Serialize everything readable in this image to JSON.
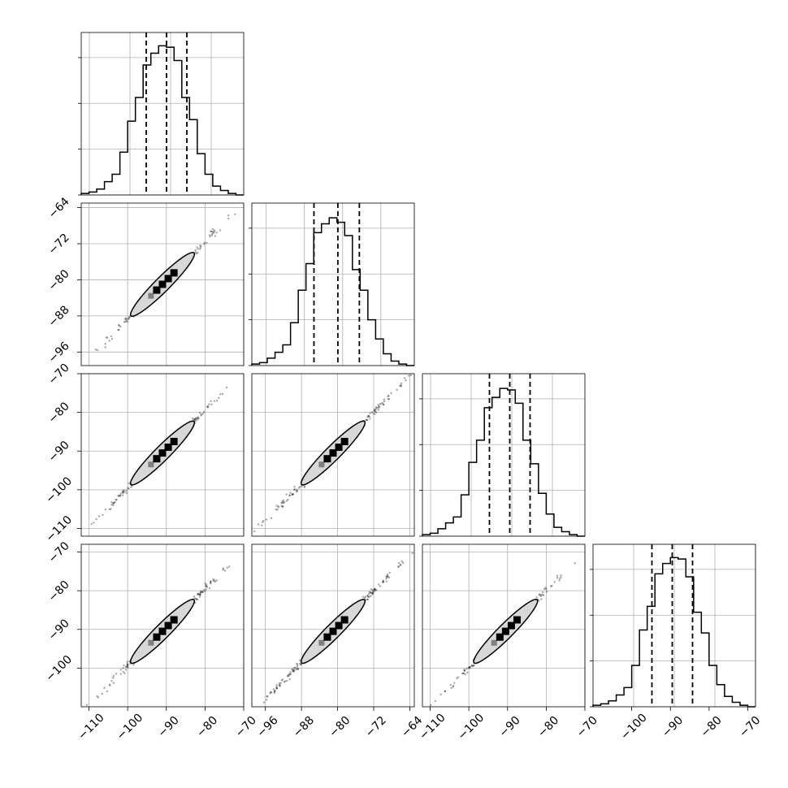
{
  "chart_data": {
    "type": "corner",
    "grid": true,
    "colors": {
      "line": "#000000",
      "grid": "#b0b0b0",
      "contour_fill": "#d8d8d8",
      "points": "#000000"
    },
    "quantile_lines": [
      {
        "panel": 1,
        "values": [
          -96.0,
          -91.0,
          -86.0
        ]
      },
      {
        "panel": 2,
        "values": [
          -86.0,
          -81.0,
          -76.5
        ]
      },
      {
        "panel": 3,
        "values": [
          -95.5,
          -90.5,
          -85.5
        ]
      },
      {
        "panel": 4,
        "values": [
          -95.5,
          -90.5,
          -85.5
        ]
      }
    ],
    "axis_ticks": {
      "p1": {
        "values": [
          -110,
          -100,
          -90,
          -80,
          -70
        ],
        "labels": [
          "−110",
          "−100",
          "−90",
          "−80",
          "−70"
        ]
      },
      "p2": {
        "values": [
          -96,
          -88,
          -80,
          -72,
          -64
        ],
        "labels": [
          "−96",
          "−88",
          "−80",
          "−72",
          "−64"
        ]
      },
      "p3": {
        "values": [
          -110,
          -100,
          -90,
          -80,
          -70
        ],
        "labels": [
          "−110",
          "−100",
          "−90",
          "−80",
          "−70"
        ]
      },
      "p4": {
        "values": [
          -100,
          -90,
          -80,
          -70
        ],
        "labels": [
          "−100",
          "−90",
          "−80",
          "−70"
        ]
      }
    },
    "left_axis_ticks": {
      "row2": {
        "values": [
          -96,
          -88,
          -80,
          -72,
          -64
        ],
        "labels": [
          "−96",
          "−88",
          "−80",
          "−72",
          "−64"
        ]
      },
      "row3": {
        "values": [
          -110,
          -100,
          -90,
          -80,
          -70
        ],
        "labels": [
          "−110",
          "−100",
          "−90",
          "−80",
          "−70"
        ]
      },
      "row4": {
        "values": [
          -100,
          -90,
          -80,
          -70
        ],
        "labels": [
          "−100",
          "−90",
          "−80",
          "−70"
        ]
      }
    },
    "histograms": [
      {
        "panel": 1,
        "range": [
          -112,
          -72
        ],
        "counts": [
          1,
          2,
          4,
          9,
          14,
          29,
          50,
          66,
          88,
          96,
          101,
          100,
          91,
          66,
          51,
          28,
          14,
          6,
          3,
          1,
          0
        ]
      },
      {
        "panel": 2,
        "range": [
          -99,
          -65
        ],
        "counts": [
          1,
          2,
          5,
          9,
          14,
          29,
          51,
          69,
          90,
          96,
          100,
          97,
          88,
          65,
          51,
          31,
          18,
          8,
          3,
          1,
          0
        ]
      },
      {
        "panel": 3,
        "range": [
          -112,
          -72
        ],
        "counts": [
          1,
          2,
          5,
          9,
          13,
          28,
          50,
          65,
          87,
          94,
          100,
          99,
          90,
          65,
          49,
          29,
          15,
          6,
          3,
          1,
          0
        ]
      },
      {
        "panel": 4,
        "range": [
          -110,
          -70
        ],
        "counts": [
          1,
          2,
          4,
          8,
          13,
          28,
          52,
          68,
          90,
          97,
          101,
          100,
          88,
          64,
          50,
          28,
          15,
          7,
          3,
          1,
          0
        ]
      }
    ],
    "hist_y_ticks": [
      {
        "panel": 1,
        "values": [
          0,
          31,
          62,
          93
        ]
      },
      {
        "panel": 2,
        "values": [
          0,
          31,
          62,
          93
        ]
      },
      {
        "panel": 3,
        "values": [
          0,
          31,
          62,
          93
        ]
      },
      {
        "panel": 4,
        "values": [
          0,
          31,
          62,
          93
        ]
      }
    ],
    "scatter_panels": [
      {
        "row": 2,
        "col": 1,
        "xparam": 1,
        "yparam": 2,
        "contour_center": [
          -91,
          -81
        ]
      },
      {
        "row": 3,
        "col": 1,
        "xparam": 1,
        "yparam": 3,
        "contour_center": [
          -91,
          -90.5
        ]
      },
      {
        "row": 3,
        "col": 2,
        "xparam": 2,
        "yparam": 3,
        "contour_center": [
          -81,
          -90.5
        ]
      },
      {
        "row": 4,
        "col": 1,
        "xparam": 1,
        "yparam": 4,
        "contour_center": [
          -91,
          -90.5
        ]
      },
      {
        "row": 4,
        "col": 2,
        "xparam": 2,
        "yparam": 4,
        "contour_center": [
          -81,
          -90.5
        ]
      },
      {
        "row": 4,
        "col": 3,
        "xparam": 3,
        "yparam": 4,
        "contour_center": [
          -90.5,
          -90.5
        ]
      }
    ],
    "param_ranges": {
      "p1": [
        -112,
        -70
      ],
      "p2": [
        -99,
        -63
      ],
      "p3": [
        -112,
        -70
      ],
      "p4": [
        -110,
        -68
      ]
    }
  }
}
